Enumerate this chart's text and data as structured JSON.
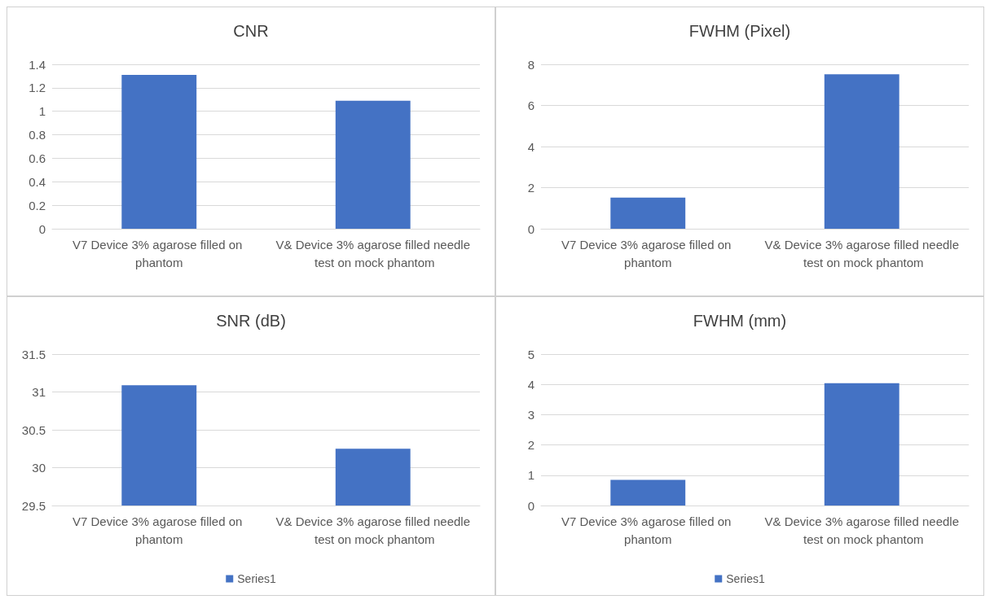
{
  "chart_data": [
    {
      "type": "bar",
      "title": "CNR",
      "categories": [
        "V7 Device 3% agarose filled on phantom",
        "V& Device 3% agarose filled needle test on mock phantom"
      ],
      "series": [
        {
          "color": "#4472c4",
          "values": [
            1.31,
            1.09
          ]
        }
      ],
      "ylim": [
        0,
        1.4
      ],
      "yticks": [
        0,
        0.2,
        0.4,
        0.6,
        0.8,
        1,
        1.2,
        1.4
      ],
      "grid": "y",
      "legend": false
    },
    {
      "type": "bar",
      "title": "FWHM (Pixel)",
      "categories": [
        "V7 Device 3% agarose filled on phantom",
        "V& Device 3% agarose filled needle test on mock phantom"
      ],
      "series": [
        {
          "color": "#4472c4",
          "values": [
            1.51,
            7.51
          ]
        }
      ],
      "ylim": [
        0,
        8
      ],
      "yticks": [
        0,
        2,
        4,
        6,
        8
      ],
      "grid": "y",
      "legend": false
    },
    {
      "type": "bar",
      "title": "SNR (dB)",
      "categories": [
        "V7 Device 3% agarose filled on phantom",
        "V& Device 3% agarose filled needle test on mock phantom"
      ],
      "series": [
        {
          "name": "Series1",
          "color": "#4472c4",
          "values": [
            31.09,
            30.25
          ]
        }
      ],
      "ylim": [
        29.5,
        31.5
      ],
      "yticks": [
        29.5,
        30,
        30.5,
        31,
        31.5
      ],
      "grid": "y",
      "legend": "bottom"
    },
    {
      "type": "bar",
      "title": "FWHM (mm)",
      "categories": [
        "V7 Device 3% agarose filled on phantom",
        "V& Device 3% agarose filled needle test on mock phantom"
      ],
      "series": [
        {
          "name": "Series1",
          "color": "#4472c4",
          "values": [
            0.85,
            4.04
          ]
        }
      ],
      "ylim": [
        0,
        5
      ],
      "yticks": [
        0,
        1,
        2,
        3,
        4,
        5
      ],
      "grid": "y",
      "legend": "bottom"
    }
  ]
}
